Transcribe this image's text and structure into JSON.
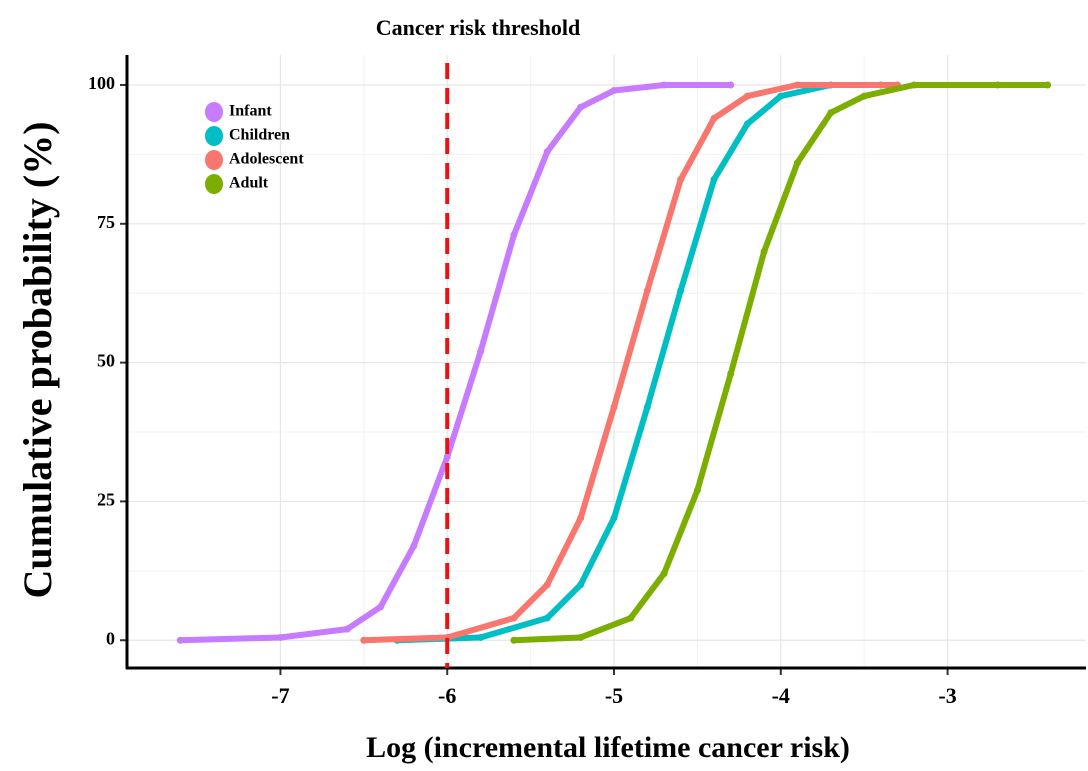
{
  "chart_data": {
    "type": "line",
    "title": "Cancer risk threshold",
    "x_label": "Log (incremental lifetime cancer risk)",
    "y_label": "Cumulative probability (%)",
    "threshold": -6,
    "xlim": [
      -7.92,
      -2.17
    ],
    "ylim": [
      -5,
      105.4
    ],
    "xticks": [
      -7,
      -6,
      -5,
      -4,
      -3
    ],
    "yticks": [
      0,
      25,
      50,
      75,
      100
    ],
    "grid": true,
    "legend": "top-left",
    "series": [
      {
        "name": "Infant",
        "color": "#c77cff",
        "x": [
          -7.6,
          -7.0,
          -6.6,
          -6.4,
          -6.2,
          -6.0,
          -5.8,
          -5.6,
          -5.4,
          -5.2,
          -5.0,
          -4.7,
          -4.3
        ],
        "values": [
          0,
          0.5,
          2,
          6,
          17,
          33,
          52,
          73,
          88,
          96,
          99,
          100,
          100
        ]
      },
      {
        "name": "Children",
        "color": "#00bfc4",
        "x": [
          -6.3,
          -5.8,
          -5.4,
          -5.2,
          -5.0,
          -4.8,
          -4.6,
          -4.4,
          -4.2,
          -4.0,
          -3.7,
          -3.4
        ],
        "values": [
          0,
          0.5,
          4,
          10,
          22,
          42,
          63,
          83,
          93,
          98,
          100,
          100
        ]
      },
      {
        "name": "Adolescent",
        "color": "#f8766d",
        "x": [
          -6.5,
          -6.0,
          -5.6,
          -5.4,
          -5.2,
          -5.0,
          -4.8,
          -4.6,
          -4.4,
          -4.2,
          -3.9,
          -3.3
        ],
        "values": [
          0,
          0.5,
          4,
          10,
          22,
          42,
          63,
          83,
          94,
          98,
          100,
          100
        ]
      },
      {
        "name": "Adult",
        "color": "#7cae00",
        "x": [
          -5.6,
          -5.2,
          -4.9,
          -4.7,
          -4.5,
          -4.3,
          -4.1,
          -3.9,
          -3.7,
          -3.5,
          -3.2,
          -2.7,
          -2.4
        ],
        "values": [
          0,
          0.5,
          4,
          12,
          27,
          48,
          70,
          86,
          95,
          98,
          100,
          100,
          100
        ]
      }
    ]
  }
}
